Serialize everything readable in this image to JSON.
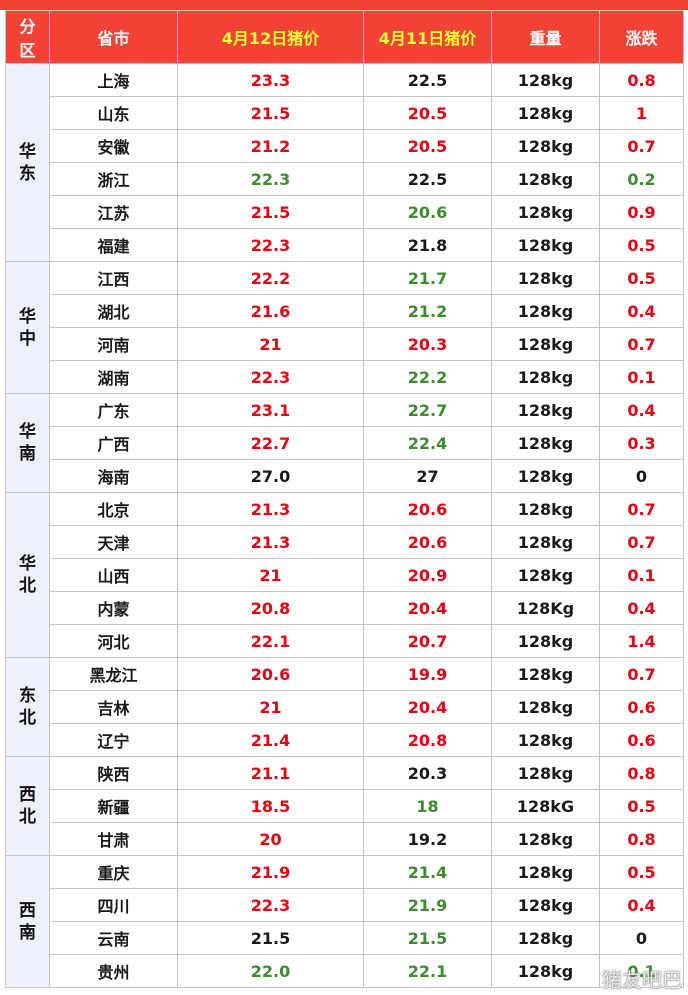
{
  "header": {
    "region": [
      "分",
      "区"
    ],
    "province": "省市",
    "price_today": "4月12日猪价",
    "price_yesterday": "4月11日猪价",
    "weight": "重量",
    "change": "涨跌"
  },
  "colors": {
    "header_bg": "#f24236",
    "rise": "#e60012",
    "fall": "#3d8b2e",
    "flat": "#1a1a1a"
  },
  "groups": [
    {
      "region": [
        "华",
        "东"
      ],
      "rows": [
        {
          "province": "上海",
          "today": "23.3",
          "today_c": "red",
          "yest": "22.5",
          "yest_c": "black",
          "weight": "128kg",
          "change": "0.8",
          "change_c": "red"
        },
        {
          "province": "山东",
          "today": "21.5",
          "today_c": "red",
          "yest": "20.5",
          "yest_c": "red",
          "weight": "128kg",
          "change": "1",
          "change_c": "red"
        },
        {
          "province": "安徽",
          "today": "21.2",
          "today_c": "red",
          "yest": "20.5",
          "yest_c": "red",
          "weight": "128kg",
          "change": "0.7",
          "change_c": "red"
        },
        {
          "province": "浙江",
          "today": "22.3",
          "today_c": "green",
          "yest": "22.5",
          "yest_c": "black",
          "weight": "128kg",
          "change": "0.2",
          "change_c": "green"
        },
        {
          "province": "江苏",
          "today": "21.5",
          "today_c": "red",
          "yest": "20.6",
          "yest_c": "green",
          "weight": "128kg",
          "change": "0.9",
          "change_c": "red"
        },
        {
          "province": "福建",
          "today": "22.3",
          "today_c": "red",
          "yest": "21.8",
          "yest_c": "black",
          "weight": "128kg",
          "change": "0.5",
          "change_c": "red"
        }
      ]
    },
    {
      "region": [
        "华",
        "中"
      ],
      "rows": [
        {
          "province": "江西",
          "today": "22.2",
          "today_c": "red",
          "yest": "21.7",
          "yest_c": "green",
          "weight": "128kg",
          "change": "0.5",
          "change_c": "red"
        },
        {
          "province": "湖北",
          "today": "21.6",
          "today_c": "red",
          "yest": "21.2",
          "yest_c": "green",
          "weight": "128kg",
          "change": "0.4",
          "change_c": "red"
        },
        {
          "province": "河南",
          "today": "21",
          "today_c": "red",
          "yest": "20.3",
          "yest_c": "red",
          "weight": "128kg",
          "change": "0.7",
          "change_c": "red"
        },
        {
          "province": "湖南",
          "today": "22.3",
          "today_c": "red",
          "yest": "22.2",
          "yest_c": "green",
          "weight": "128kg",
          "change": "0.1",
          "change_c": "red"
        }
      ]
    },
    {
      "region": [
        "华",
        "南"
      ],
      "rows": [
        {
          "province": "广东",
          "today": "23.1",
          "today_c": "red",
          "yest": "22.7",
          "yest_c": "green",
          "weight": "128kg",
          "change": "0.4",
          "change_c": "red"
        },
        {
          "province": "广西",
          "today": "22.7",
          "today_c": "red",
          "yest": "22.4",
          "yest_c": "green",
          "weight": "128kg",
          "change": "0.3",
          "change_c": "red"
        },
        {
          "province": "海南",
          "today": "27.0",
          "today_c": "black",
          "yest": "27",
          "yest_c": "black",
          "weight": "128kg",
          "change": "0",
          "change_c": "black"
        }
      ]
    },
    {
      "region": [
        "华",
        "北"
      ],
      "rows": [
        {
          "province": "北京",
          "today": "21.3",
          "today_c": "red",
          "yest": "20.6",
          "yest_c": "red",
          "weight": "128kg",
          "change": "0.7",
          "change_c": "red"
        },
        {
          "province": "天津",
          "today": "21.3",
          "today_c": "red",
          "yest": "20.6",
          "yest_c": "red",
          "weight": "128kg",
          "change": "0.7",
          "change_c": "red"
        },
        {
          "province": "山西",
          "today": "21",
          "today_c": "red",
          "yest": "20.9",
          "yest_c": "red",
          "weight": "128kg",
          "change": "0.1",
          "change_c": "red"
        },
        {
          "province": "内蒙",
          "today": "20.8",
          "today_c": "red",
          "yest": "20.4",
          "yest_c": "red",
          "weight": "128Kg",
          "change": "0.4",
          "change_c": "red"
        },
        {
          "province": "河北",
          "today": "22.1",
          "today_c": "red",
          "yest": "20.7",
          "yest_c": "red",
          "weight": "128kg",
          "change": "1.4",
          "change_c": "red"
        }
      ]
    },
    {
      "region": [
        "东",
        "北"
      ],
      "rows": [
        {
          "province": "黑龙江",
          "today": "20.6",
          "today_c": "red",
          "yest": "19.9",
          "yest_c": "red",
          "weight": "128kg",
          "change": "0.7",
          "change_c": "red"
        },
        {
          "province": "吉林",
          "today": "21",
          "today_c": "red",
          "yest": "20.4",
          "yest_c": "red",
          "weight": "128kg",
          "change": "0.6",
          "change_c": "red"
        },
        {
          "province": "辽宁",
          "today": "21.4",
          "today_c": "red",
          "yest": "20.8",
          "yest_c": "red",
          "weight": "128kg",
          "change": "0.6",
          "change_c": "red"
        }
      ]
    },
    {
      "region": [
        "西",
        "北"
      ],
      "rows": [
        {
          "province": "陕西",
          "today": "21.1",
          "today_c": "red",
          "yest": "20.3",
          "yest_c": "black",
          "weight": "128kg",
          "change": "0.8",
          "change_c": "red"
        },
        {
          "province": "新疆",
          "today": "18.5",
          "today_c": "red",
          "yest": "18",
          "yest_c": "green",
          "weight": "128kG",
          "change": "0.5",
          "change_c": "red"
        },
        {
          "province": "甘肃",
          "today": "20",
          "today_c": "red",
          "yest": "19.2",
          "yest_c": "black",
          "weight": "128kg",
          "change": "0.8",
          "change_c": "red"
        }
      ]
    },
    {
      "region": [
        "西",
        "南"
      ],
      "rows": [
        {
          "province": "重庆",
          "today": "21.9",
          "today_c": "red",
          "yest": "21.4",
          "yest_c": "green",
          "weight": "128kg",
          "change": "0.5",
          "change_c": "red"
        },
        {
          "province": "四川",
          "today": "22.3",
          "today_c": "red",
          "yest": "21.9",
          "yest_c": "green",
          "weight": "128kg",
          "change": "0.4",
          "change_c": "red"
        },
        {
          "province": "云南",
          "today": "21.5",
          "today_c": "black",
          "yest": "21.5",
          "yest_c": "green",
          "weight": "128kg",
          "change": "0",
          "change_c": "black"
        },
        {
          "province": "贵州",
          "today": "22.0",
          "today_c": "green",
          "yest": "22.1",
          "yest_c": "green",
          "weight": "128kg",
          "change": "0.1",
          "change_c": "green"
        }
      ]
    }
  ],
  "watermark": "猪友吧巴"
}
